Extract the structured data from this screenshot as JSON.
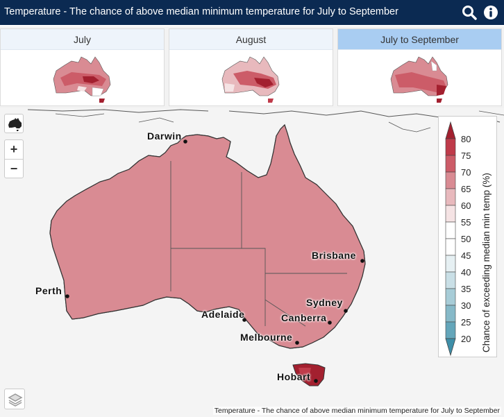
{
  "header": {
    "title": "Temperature - The chance of above median minimum temperature for July to September",
    "search_icon": "search-icon",
    "info_icon": "info-icon"
  },
  "tabs": [
    {
      "label": "July",
      "active": false
    },
    {
      "label": "August",
      "active": false
    },
    {
      "label": "July to September",
      "active": true
    }
  ],
  "legend": {
    "title": "Chance of exceeding median min temp (%)",
    "ticks": [
      "80",
      "75",
      "70",
      "65",
      "60",
      "55",
      "50",
      "45",
      "40",
      "35",
      "30",
      "25",
      "20"
    ],
    "colors": {
      "80_plus": "#a3202f",
      "75": "#bf3b4a",
      "70": "#cc5c68",
      "65": "#d98b93",
      "60": "#e8b9bd",
      "55": "#f5e3e4",
      "50": "#ffffff",
      "45": "#e6f0f3",
      "40": "#c9dfe6",
      "35": "#a7ccd7",
      "30": "#86b9c8",
      "25": "#64a6ba",
      "20_minus": "#3e8fa9"
    }
  },
  "cities": {
    "darwin": "Darwin",
    "brisbane": "Brisbane",
    "perth": "Perth",
    "sydney": "Sydney",
    "adelaide": "Adelaide",
    "canberra": "Canberra",
    "melbourne": "Melbourne",
    "hobart": "Hobart"
  },
  "controls": {
    "zoom_in": "+",
    "zoom_out": "−"
  },
  "attribution": "Temperature - The chance of above median minimum temperature for July to September"
}
